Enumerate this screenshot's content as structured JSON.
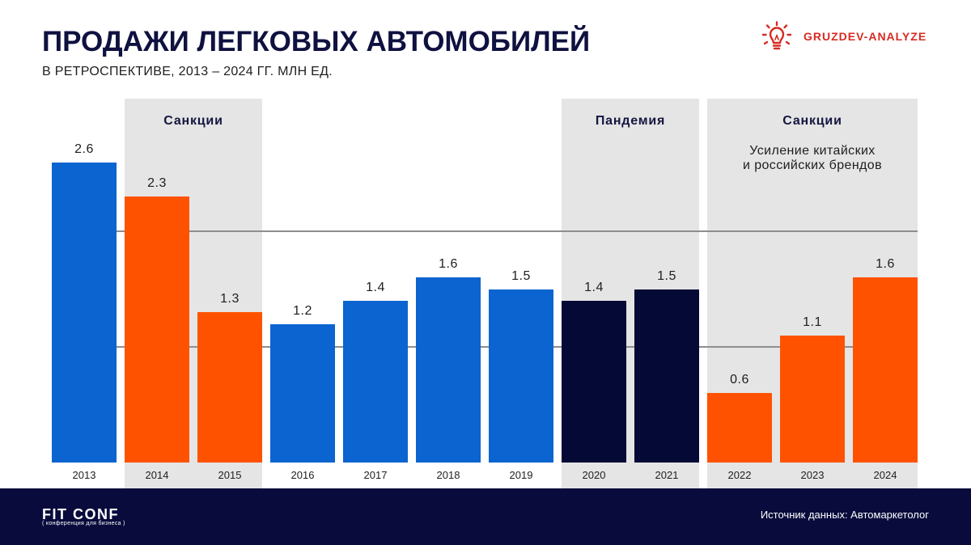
{
  "logo": {
    "icon": "lightbulb-icon",
    "text": "GRUZDEV-ANALYZE",
    "color": "#d62b22"
  },
  "footer": {
    "brand": "FIT CONF",
    "brand_tagline": "( конференция для бизнеса )",
    "source": "Источник данных: Автомаркетолог"
  },
  "chart_data": {
    "type": "bar",
    "title": "ПРОДАЖИ ЛЕГКОВЫХ АВТОМОБИЛЕЙ",
    "subtitle": "В РЕТРОСПЕКТИВЕ, 2013 – 2024 ГГ. МЛН ЕД.",
    "categories": [
      "2013",
      "2014",
      "2015",
      "2016",
      "2017",
      "2018",
      "2019",
      "2020",
      "2021",
      "2022",
      "2023",
      "2024"
    ],
    "values": [
      2.6,
      2.3,
      1.3,
      1.2,
      1.4,
      1.6,
      1.5,
      1.4,
      1.5,
      0.6,
      1.1,
      1.6
    ],
    "bar_colors": [
      "#0b64cf",
      "#ff5200",
      "#ff5200",
      "#0b64cf",
      "#0b64cf",
      "#0b64cf",
      "#0b64cf",
      "#050936",
      "#050936",
      "#ff5200",
      "#ff5200",
      "#ff5200"
    ],
    "ylim": [
      0,
      3.15
    ],
    "grid": true,
    "gridlines": [
      1,
      2
    ],
    "periods": [
      {
        "label": "Санкции",
        "from": "2014",
        "to": "2015"
      },
      {
        "label": "Пандемия",
        "from": "2020",
        "to": "2021"
      },
      {
        "label": "Санкции",
        "note": [
          "Усиление китайских",
          "и российских брендов"
        ],
        "from": "2022",
        "to": "2024"
      }
    ]
  }
}
